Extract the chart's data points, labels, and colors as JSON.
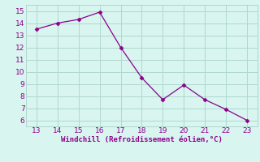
{
  "x": [
    13,
    14,
    15,
    16,
    17,
    18,
    19,
    20,
    21,
    22,
    23
  ],
  "y": [
    13.5,
    14.0,
    14.3,
    14.9,
    12.0,
    9.5,
    7.7,
    8.9,
    7.7,
    6.9,
    6.0
  ],
  "line_color": "#8B008B",
  "marker": "D",
  "marker_size": 2.5,
  "bg_color": "#d8f5f0",
  "grid_color": "#b0d8d0",
  "xlabel": "Windchill (Refroidissement éolien,°C)",
  "xlabel_color": "#8B008B",
  "tick_color": "#8B008B",
  "xlim": [
    12.5,
    23.5
  ],
  "ylim": [
    5.5,
    15.5
  ],
  "xticks": [
    13,
    14,
    15,
    16,
    17,
    18,
    19,
    20,
    21,
    22,
    23
  ],
  "yticks": [
    6,
    7,
    8,
    9,
    10,
    11,
    12,
    13,
    14,
    15
  ],
  "font_size": 6.5,
  "xlabel_fontsize": 6.5
}
